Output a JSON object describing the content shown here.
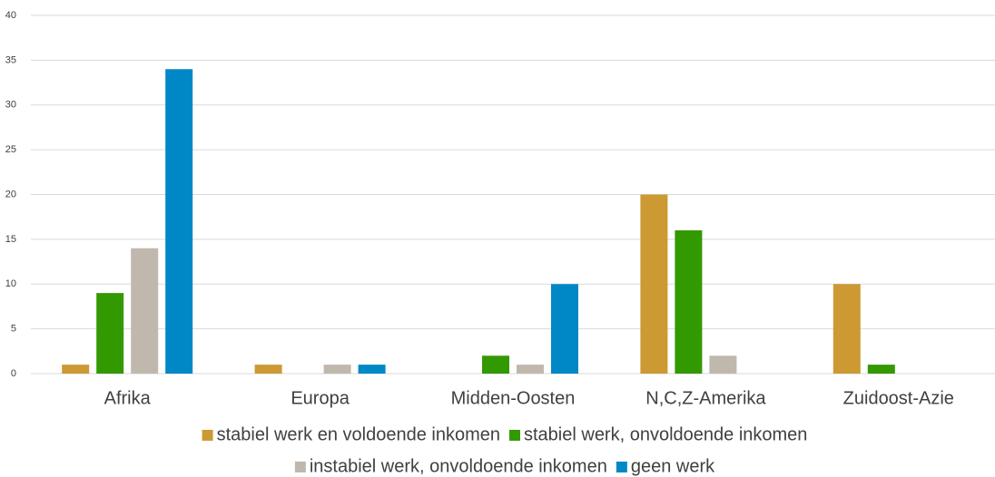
{
  "chart_data": {
    "type": "bar",
    "categories": [
      "Afrika",
      "Europa",
      "Midden-Oosten",
      "N,C,Z-Amerika",
      "Zuidoost-Azie"
    ],
    "series": [
      {
        "name": "stabiel werk en voldoende inkomen",
        "color": "#cc9933",
        "values": [
          1,
          1,
          0,
          20,
          10
        ]
      },
      {
        "name": "stabiel werk, onvoldoende inkomen",
        "color": "#339900",
        "values": [
          9,
          0,
          2,
          16,
          1
        ]
      },
      {
        "name": "instabiel werk, onvoldoende inkomen",
        "color": "#c0b8ad",
        "values": [
          14,
          1,
          1,
          2,
          0
        ]
      },
      {
        "name": "geen werk",
        "color": "#0088c6",
        "values": [
          34,
          1,
          10,
          0,
          0
        ]
      }
    ],
    "ylim": [
      0,
      40
    ],
    "yticks": [
      0,
      5,
      10,
      15,
      20,
      25,
      30,
      35,
      40
    ],
    "grid": true,
    "legend": "bottom"
  }
}
